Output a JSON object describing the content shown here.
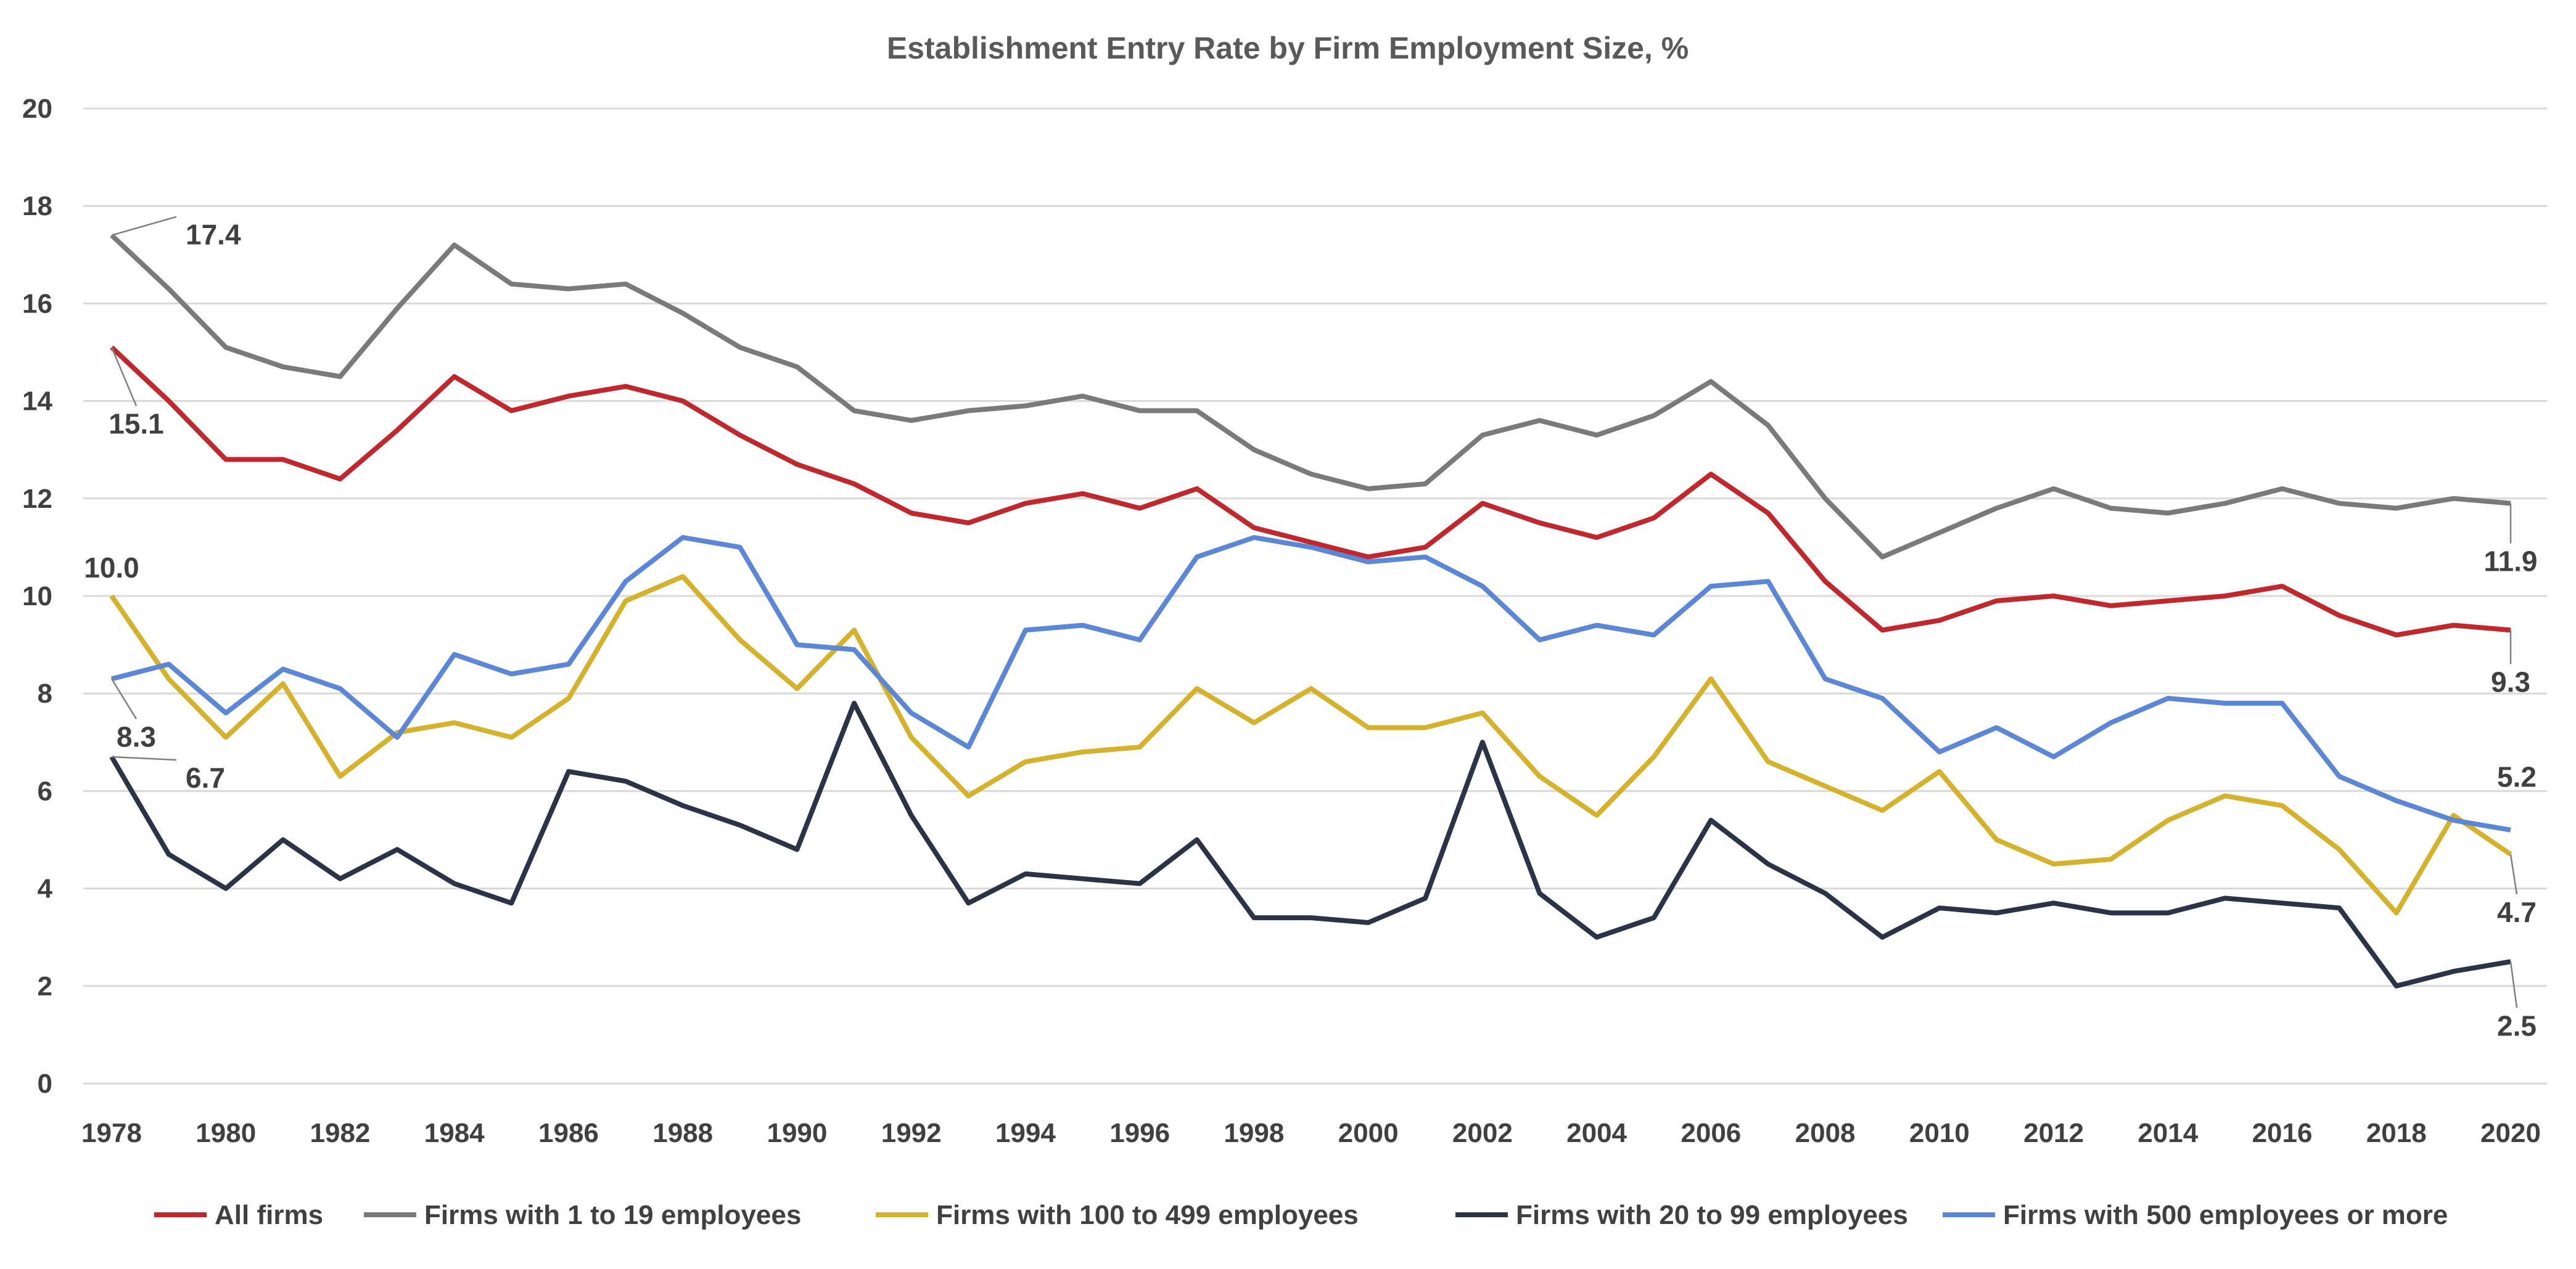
{
  "chart_data": {
    "type": "line",
    "title": "Establishment Entry Rate by Firm Employment Size, %",
    "xlabel": "",
    "ylabel": "",
    "ylim": [
      0,
      20
    ],
    "yticks": [
      0,
      2,
      4,
      6,
      8,
      10,
      12,
      14,
      16,
      18,
      20
    ],
    "xticks": [
      1978,
      1980,
      1982,
      1984,
      1986,
      1988,
      1990,
      1992,
      1994,
      1996,
      1998,
      2000,
      2002,
      2004,
      2006,
      2008,
      2010,
      2012,
      2014,
      2016,
      2018,
      2020
    ],
    "grid": "horizontal",
    "legend_placement": "bottom",
    "x": [
      1978,
      1979,
      1980,
      1981,
      1982,
      1983,
      1984,
      1985,
      1986,
      1987,
      1988,
      1989,
      1990,
      1991,
      1992,
      1993,
      1994,
      1995,
      1996,
      1997,
      1998,
      1999,
      2000,
      2001,
      2002,
      2003,
      2004,
      2005,
      2006,
      2007,
      2008,
      2009,
      2010,
      2011,
      2012,
      2013,
      2014,
      2015,
      2016,
      2017,
      2018,
      2019,
      2020
    ],
    "series": [
      {
        "name": "All firms",
        "color": "#C0282D",
        "values": [
          15.1,
          14.0,
          12.8,
          12.8,
          12.4,
          13.4,
          14.5,
          13.8,
          14.1,
          14.3,
          14.0,
          13.3,
          12.7,
          12.3,
          11.7,
          11.5,
          11.9,
          12.1,
          11.8,
          12.2,
          11.4,
          11.1,
          10.8,
          11.0,
          11.9,
          11.5,
          11.2,
          11.6,
          12.5,
          11.7,
          10.3,
          9.3,
          9.5,
          9.9,
          10.0,
          9.8,
          9.9,
          10.0,
          10.2,
          9.6,
          9.2,
          9.4,
          9.3
        ]
      },
      {
        "name": "Firms with 1 to 19 employees",
        "color": "#7A7A7A",
        "values": [
          17.4,
          16.3,
          15.1,
          14.7,
          14.5,
          15.9,
          17.2,
          16.4,
          16.3,
          16.4,
          15.8,
          15.1,
          14.7,
          13.8,
          13.6,
          13.8,
          13.9,
          14.1,
          13.8,
          13.8,
          13.0,
          12.5,
          12.2,
          12.3,
          13.3,
          13.6,
          13.3,
          13.7,
          14.4,
          13.5,
          12.0,
          10.8,
          11.3,
          11.8,
          12.2,
          11.8,
          11.7,
          11.9,
          12.2,
          11.9,
          11.8,
          12.0,
          11.9
        ]
      },
      {
        "name": "Firms with 100 to 499 employees",
        "color": "#D4B22C",
        "values": [
          10.0,
          8.3,
          7.1,
          8.2,
          6.3,
          7.2,
          7.4,
          7.1,
          7.9,
          9.9,
          10.4,
          9.1,
          8.1,
          9.3,
          7.1,
          5.9,
          6.6,
          6.8,
          6.9,
          8.1,
          7.4,
          8.1,
          7.3,
          7.3,
          7.6,
          6.3,
          5.5,
          6.7,
          8.3,
          6.6,
          6.1,
          5.6,
          6.4,
          5.0,
          4.5,
          4.6,
          5.4,
          5.9,
          5.7,
          4.8,
          3.5,
          5.5,
          4.7
        ]
      },
      {
        "name": "Firms with 20 to 99 employees",
        "color": "#2B3346",
        "values": [
          6.7,
          4.7,
          4.0,
          5.0,
          4.2,
          4.8,
          4.1,
          3.7,
          6.4,
          6.2,
          5.7,
          5.3,
          4.8,
          7.8,
          5.5,
          3.7,
          4.3,
          4.2,
          4.1,
          5.0,
          3.4,
          3.4,
          3.3,
          3.8,
          7.0,
          3.9,
          3.0,
          3.4,
          5.4,
          4.5,
          3.9,
          3.0,
          3.6,
          3.5,
          3.7,
          3.5,
          3.5,
          3.8,
          3.7,
          3.6,
          2.0,
          2.3,
          2.5
        ]
      },
      {
        "name": "Firms with 500 employees or more",
        "color": "#5B87D6",
        "values": [
          8.3,
          8.6,
          7.6,
          8.5,
          8.1,
          7.1,
          8.8,
          8.4,
          8.6,
          10.3,
          11.2,
          11.0,
          9.0,
          8.9,
          7.6,
          6.9,
          9.3,
          9.4,
          9.1,
          10.8,
          11.2,
          11.0,
          10.7,
          10.8,
          10.2,
          9.1,
          9.4,
          9.2,
          10.2,
          10.3,
          8.3,
          7.9,
          6.8,
          7.3,
          6.7,
          7.4,
          7.9,
          7.8,
          7.8,
          6.3,
          5.8,
          5.4,
          5.2
        ]
      }
    ],
    "annotations": [
      {
        "text": "17.4",
        "x": 1978,
        "y": 17.4
      },
      {
        "text": "15.1",
        "x": 1978,
        "y": 15.1
      },
      {
        "text": "10.0",
        "x": 1978,
        "y": 10.0
      },
      {
        "text": "8.3",
        "x": 1978,
        "y": 8.3
      },
      {
        "text": "6.7",
        "x": 1978,
        "y": 6.7
      },
      {
        "text": "11.9",
        "x": 2020,
        "y": 11.9
      },
      {
        "text": "9.3",
        "x": 2020,
        "y": 9.3
      },
      {
        "text": "5.2",
        "x": 2020,
        "y": 5.2
      },
      {
        "text": "4.7",
        "x": 2020,
        "y": 4.7
      },
      {
        "text": "2.5",
        "x": 2020,
        "y": 2.5
      }
    ]
  }
}
